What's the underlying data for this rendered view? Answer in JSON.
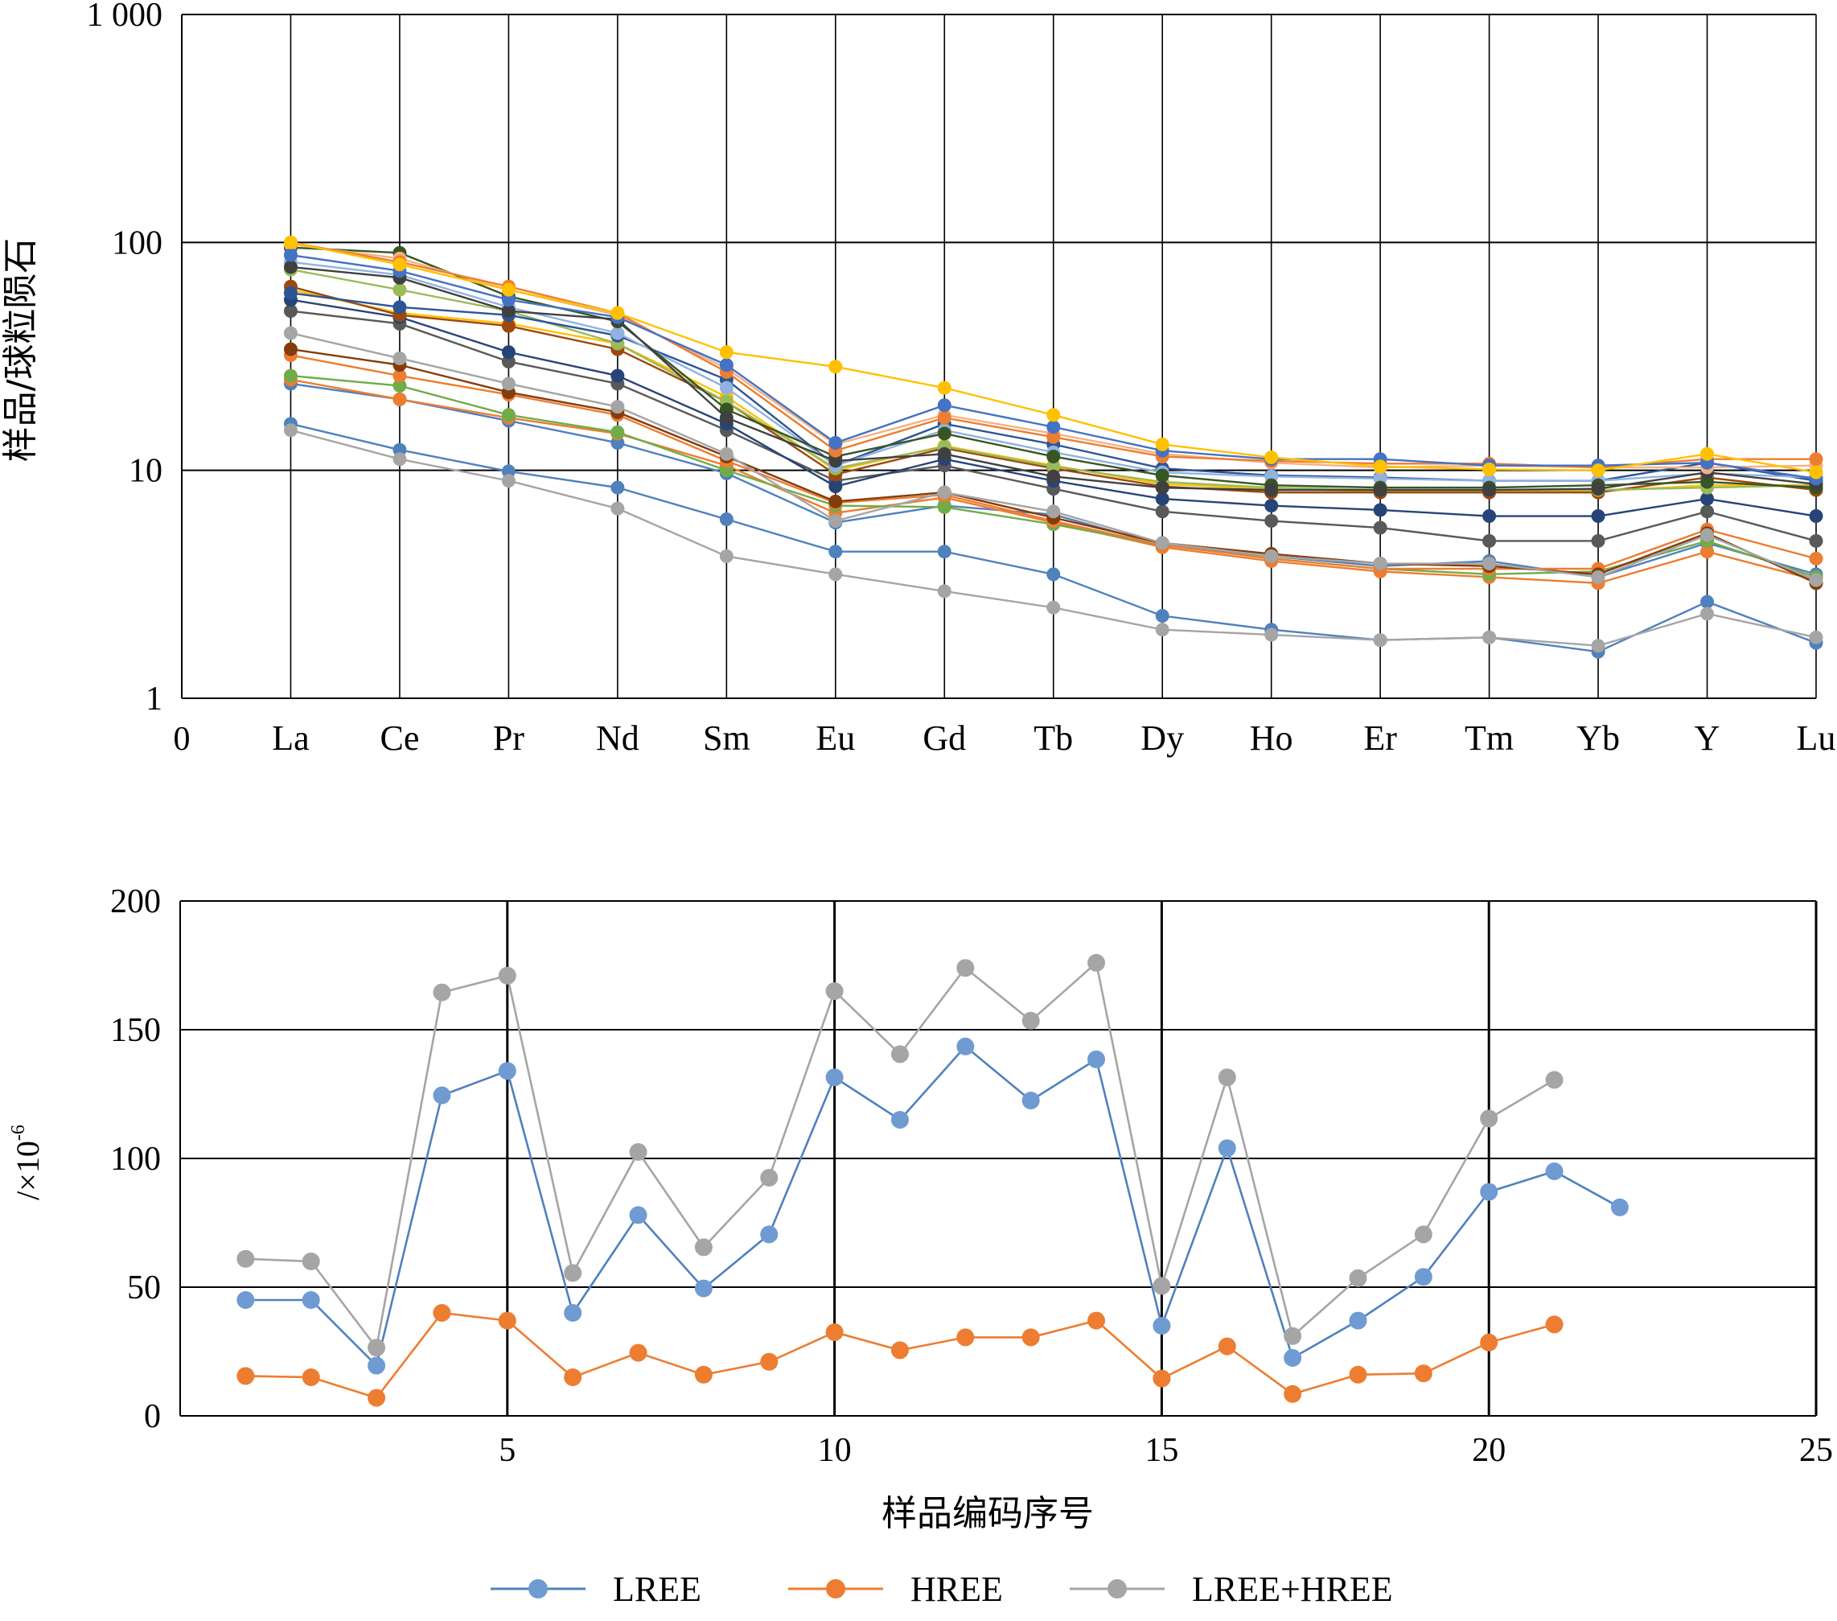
{
  "colors": {
    "LREE": "#6f9bd2",
    "LREE_stroke": "#4f81bd",
    "HREE": "#ed7d31",
    "LREE_HREE": "#a5a5a5",
    "grid": "#000000"
  },
  "chart_data": [
    {
      "type": "line",
      "yscale": "log",
      "ylim": [
        1,
        1000
      ],
      "ylabel": "样品/球粒陨石",
      "y_ticks": [
        "1",
        "10",
        "100",
        "1 000"
      ],
      "x_tick_zero": "0",
      "categories": [
        "La",
        "Ce",
        "Pr",
        "Nd",
        "Sm",
        "Eu",
        "Gd",
        "Tb",
        "Dy",
        "Ho",
        "Er",
        "Tm",
        "Yb",
        "Y",
        "Lu"
      ],
      "grid": true,
      "series": [
        {
          "color": "#4f81bd",
          "values": [
            16,
            12.3,
            9.9,
            8.4,
            6.1,
            4.4,
            4.4,
            3.5,
            2.3,
            2.0,
            1.8,
            1.85,
            1.6,
            2.65,
            1.75
          ]
        },
        {
          "color": "#a5a5a5",
          "values": [
            15,
            11.2,
            9.0,
            6.8,
            4.2,
            3.5,
            2.95,
            2.5,
            2.0,
            1.9,
            1.8,
            1.85,
            1.7,
            2.35,
            1.85
          ]
        },
        {
          "color": "#4f81bd",
          "values": [
            24,
            20.5,
            16.5,
            13.2,
            9.7,
            5.9,
            7.0,
            6.4,
            4.7,
            4.2,
            3.8,
            4.0,
            3.4,
            4.8,
            3.5
          ]
        },
        {
          "color": "#ed7d31",
          "values": [
            25,
            20.5,
            17,
            14.5,
            10.5,
            6.5,
            7.6,
            5.9,
            4.6,
            4.0,
            3.6,
            3.4,
            3.2,
            4.4,
            3.3
          ]
        },
        {
          "color": "#70ad47",
          "values": [
            26,
            23.5,
            17.5,
            14.7,
            10.0,
            7.0,
            6.9,
            5.8,
            4.7,
            4.1,
            3.7,
            3.5,
            3.6,
            4.9,
            3.4
          ]
        },
        {
          "color": "#ed7d31",
          "values": [
            32,
            26,
            21.5,
            17.5,
            11.0,
            7.2,
            7.8,
            6.0,
            4.7,
            4.1,
            3.7,
            3.7,
            3.7,
            5.5,
            4.1
          ]
        },
        {
          "color": "#843c0c",
          "values": [
            34,
            29,
            22,
            18,
            11.5,
            7.3,
            8.0,
            6.2,
            4.8,
            4.3,
            3.9,
            3.8,
            3.5,
            5.3,
            3.2
          ]
        },
        {
          "color": "#a5a5a5",
          "values": [
            40,
            31,
            24,
            19,
            11.8,
            6.0,
            8.0,
            6.6,
            4.8,
            4.2,
            3.9,
            3.9,
            3.4,
            5.2,
            3.3
          ]
        },
        {
          "color": "#595959",
          "values": [
            50,
            44,
            30,
            24,
            15,
            9.0,
            10.5,
            8.3,
            6.6,
            6.0,
            5.6,
            4.9,
            4.9,
            6.6,
            4.9
          ]
        },
        {
          "color": "#264478",
          "values": [
            56,
            47,
            33,
            26,
            16,
            8.5,
            11.2,
            9.0,
            7.5,
            7.0,
            6.7,
            6.3,
            6.3,
            7.5,
            6.3
          ]
        },
        {
          "color": "#ffc000",
          "values": [
            62,
            49,
            44,
            36,
            21,
            10.0,
            12.8,
            10.5,
            8.7,
            8.3,
            8.1,
            8.1,
            8.1,
            8.6,
            8.6
          ]
        },
        {
          "color": "#9e480e",
          "values": [
            64,
            48,
            43,
            34,
            20,
            9.6,
            12.5,
            10.2,
            8.5,
            8.0,
            8.0,
            8.0,
            8.0,
            9.3,
            8.2
          ]
        },
        {
          "color": "#9bbb59",
          "values": [
            76,
            62,
            50,
            36,
            20,
            10.2,
            12.7,
            10.4,
            8.9,
            8.4,
            8.2,
            8.2,
            8.2,
            8.4,
            8.6
          ]
        },
        {
          "color": "#2e5496",
          "values": [
            60,
            52,
            48,
            39,
            25,
            10.5,
            16,
            13,
            10.2,
            9.5,
            9.3,
            9.0,
            9.0,
            10.8,
            9.0
          ]
        },
        {
          "color": "#91b3e0",
          "values": [
            82,
            72,
            52,
            40,
            23,
            10.5,
            15,
            12,
            9.8,
            9.4,
            9.2,
            9.0,
            9.0,
            9.7,
            9.3
          ]
        },
        {
          "color": "#375623",
          "values": [
            95,
            90,
            58,
            45,
            18.5,
            11.5,
            14.5,
            11.5,
            9.5,
            8.6,
            8.4,
            8.4,
            8.6,
            8.9,
            8.4
          ]
        },
        {
          "color": "#404040",
          "values": [
            78,
            70,
            50,
            46,
            17,
            11.0,
            11.8,
            9.4,
            8.4,
            8.2,
            8.2,
            8.2,
            8.3,
            9.8,
            8.7
          ]
        },
        {
          "color": "#f4b183",
          "values": [
            98,
            85,
            62,
            48,
            28,
            13.0,
            17.5,
            14.5,
            11.8,
            10.8,
            10.3,
            10.5,
            10.3,
            10.3,
            10.5
          ]
        },
        {
          "color": "#ed7d31",
          "values": [
            100,
            82,
            64,
            49,
            27,
            12.2,
            17.0,
            14.0,
            11.5,
            11.0,
            10.7,
            10.7,
            10.3,
            11.2,
            11.2
          ]
        },
        {
          "color": "#4472c4",
          "values": [
            88,
            75,
            56,
            47,
            29,
            13.2,
            19.3,
            15.5,
            12.2,
            11.2,
            11.2,
            10.5,
            10.5,
            10.8,
            9.2
          ]
        },
        {
          "color": "#ffc000",
          "values": [
            100,
            80,
            62,
            49,
            33,
            28.5,
            23,
            17.5,
            13,
            11.4,
            10.4,
            10.1,
            10.0,
            11.8,
            9.8
          ]
        }
      ]
    },
    {
      "type": "line",
      "ylim": [
        0,
        200
      ],
      "xlim": [
        0,
        25
      ],
      "xlabel": "样品编码序号",
      "ylabel": "/×10",
      "ylabel_superscript": "-6",
      "y_ticks": [
        "0",
        "50",
        "100",
        "150",
        "200"
      ],
      "x_ticks": [
        "5",
        "10",
        "15",
        "20",
        "25"
      ],
      "grid": true,
      "legend": "bottom",
      "series": [
        {
          "name": "LREE",
          "x": [
            1,
            2,
            3,
            4,
            5,
            6,
            7,
            8,
            9,
            10,
            11,
            12,
            13,
            14,
            15,
            16,
            17,
            18,
            19,
            20,
            21,
            22
          ],
          "values": [
            45,
            45,
            19.5,
            124.5,
            134,
            40,
            78,
            49.5,
            70.5,
            131.5,
            115,
            143.5,
            122.5,
            138.5,
            35,
            104,
            22.5,
            37,
            54,
            87,
            95,
            81
          ]
        },
        {
          "name": "HREE",
          "x": [
            1,
            2,
            3,
            4,
            5,
            6,
            7,
            8,
            9,
            10,
            11,
            12,
            13,
            14,
            15,
            16,
            17,
            18,
            19,
            20,
            21
          ],
          "values": [
            15.5,
            15,
            7,
            40,
            37,
            15,
            24.5,
            16,
            21,
            32.5,
            25.5,
            30.5,
            30.5,
            37,
            14.5,
            27,
            8.5,
            16,
            16.5,
            28.5,
            35.5
          ]
        },
        {
          "name": "LREE+HREE",
          "x": [
            1,
            2,
            3,
            4,
            5,
            6,
            7,
            8,
            9,
            10,
            11,
            12,
            13,
            14,
            15,
            16,
            17,
            18,
            19,
            20,
            21
          ],
          "values": [
            61,
            60,
            26.5,
            164.5,
            171,
            55.5,
            102.5,
            65.5,
            92.5,
            165,
            140.5,
            174,
            153.5,
            176,
            50.5,
            131.5,
            31,
            53.5,
            70.5,
            115.5,
            130.5
          ]
        }
      ]
    }
  ]
}
